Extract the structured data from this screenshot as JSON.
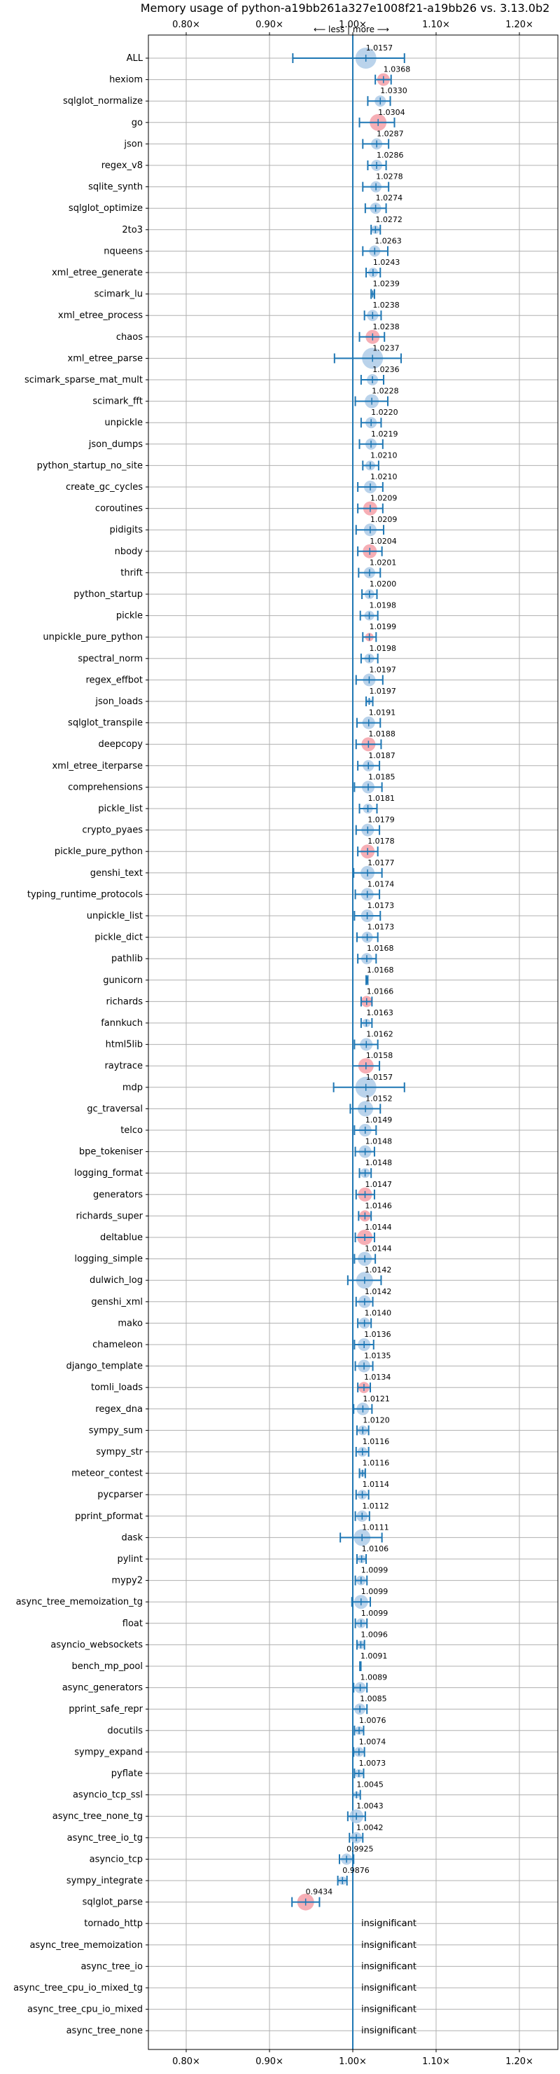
{
  "chart_data": {
    "type": "scatter",
    "title": "Memory usage of python-a19bb261a327e1008f21-a19bb26 vs. 3.13.0b2",
    "subtitle": "⟵ less | more ⟶",
    "xlim": [
      0.75,
      1.25
    ],
    "x_ticks": [
      "0.80×",
      "0.90×",
      "1.00×",
      "1.10×",
      "1.20×"
    ],
    "x_tick_values": [
      0.8,
      0.9,
      1.0,
      1.1,
      1.2
    ],
    "grid": true,
    "colors": {
      "significant": "#1f77b4",
      "changed": "#f4a0a8",
      "line": "#1f77b4"
    },
    "benchmarks": [
      {
        "name": "ALL",
        "value": 1.0157,
        "label": "1.0157",
        "err": [
          0.928,
          1.062
        ],
        "r": 15,
        "hl": false
      },
      {
        "name": "hexiom",
        "value": 1.0368,
        "label": "1.0368",
        "err": [
          1.027,
          1.046
        ],
        "r": 9,
        "hl": true
      },
      {
        "name": "sqlglot_normalize",
        "value": 1.033,
        "label": "1.0330",
        "err": [
          1.018,
          1.045
        ],
        "r": 8,
        "hl": false
      },
      {
        "name": "go",
        "value": 1.0304,
        "label": "1.0304",
        "err": [
          1.008,
          1.05
        ],
        "r": 12,
        "hl": true
      },
      {
        "name": "json",
        "value": 1.0287,
        "label": "1.0287",
        "err": [
          1.012,
          1.043
        ],
        "r": 8,
        "hl": false
      },
      {
        "name": "regex_v8",
        "value": 1.0286,
        "label": "1.0286",
        "err": [
          1.018,
          1.04
        ],
        "r": 8,
        "hl": false
      },
      {
        "name": "sqlite_synth",
        "value": 1.0278,
        "label": "1.0278",
        "err": [
          1.012,
          1.043
        ],
        "r": 8,
        "hl": false
      },
      {
        "name": "sqlglot_optimize",
        "value": 1.0274,
        "label": "1.0274",
        "err": [
          1.015,
          1.04
        ],
        "r": 8,
        "hl": false
      },
      {
        "name": "2to3",
        "value": 1.0272,
        "label": "1.0272",
        "err": [
          1.022,
          1.033
        ],
        "r": 6,
        "hl": false
      },
      {
        "name": "nqueens",
        "value": 1.0263,
        "label": "1.0263",
        "err": [
          1.012,
          1.042
        ],
        "r": 8,
        "hl": false
      },
      {
        "name": "xml_etree_generate",
        "value": 1.0243,
        "label": "1.0243",
        "err": [
          1.016,
          1.033
        ],
        "r": 7,
        "hl": false
      },
      {
        "name": "scimark_lu",
        "value": 1.0239,
        "label": "1.0239",
        "err": [
          1.022,
          1.026
        ],
        "r": 3,
        "hl": false
      },
      {
        "name": "xml_etree_process",
        "value": 1.0238,
        "label": "1.0238",
        "err": [
          1.014,
          1.034
        ],
        "r": 8,
        "hl": false
      },
      {
        "name": "chaos",
        "value": 1.0238,
        "label": "1.0238",
        "err": [
          1.008,
          1.038
        ],
        "r": 10,
        "hl": true
      },
      {
        "name": "xml_etree_parse",
        "value": 1.0237,
        "label": "1.0237",
        "err": [
          0.978,
          1.058
        ],
        "r": 15,
        "hl": false
      },
      {
        "name": "scimark_sparse_mat_mult",
        "value": 1.0236,
        "label": "1.0236",
        "err": [
          1.01,
          1.037
        ],
        "r": 8,
        "hl": false
      },
      {
        "name": "scimark_fft",
        "value": 1.0228,
        "label": "1.0228",
        "err": [
          1.003,
          1.042
        ],
        "r": 10,
        "hl": false
      },
      {
        "name": "unpickle",
        "value": 1.022,
        "label": "1.0220",
        "err": [
          1.01,
          1.034
        ],
        "r": 8,
        "hl": false
      },
      {
        "name": "json_dumps",
        "value": 1.0219,
        "label": "1.0219",
        "err": [
          1.008,
          1.036
        ],
        "r": 8,
        "hl": false
      },
      {
        "name": "python_startup_no_site",
        "value": 1.021,
        "label": "1.0210",
        "err": [
          1.012,
          1.031
        ],
        "r": 7,
        "hl": false
      },
      {
        "name": "create_gc_cycles",
        "value": 1.021,
        "label": "1.0210",
        "err": [
          1.006,
          1.036
        ],
        "r": 9,
        "hl": false
      },
      {
        "name": "coroutines",
        "value": 1.0209,
        "label": "1.0209",
        "err": [
          1.006,
          1.036
        ],
        "r": 10,
        "hl": true
      },
      {
        "name": "pidigits",
        "value": 1.0209,
        "label": "1.0209",
        "err": [
          1.004,
          1.037
        ],
        "r": 9,
        "hl": false
      },
      {
        "name": "nbody",
        "value": 1.0204,
        "label": "1.0204",
        "err": [
          1.006,
          1.035
        ],
        "r": 10,
        "hl": true
      },
      {
        "name": "thrift",
        "value": 1.0201,
        "label": "1.0201",
        "err": [
          1.007,
          1.033
        ],
        "r": 8,
        "hl": false
      },
      {
        "name": "python_startup",
        "value": 1.02,
        "label": "1.0200",
        "err": [
          1.011,
          1.029
        ],
        "r": 7,
        "hl": false
      },
      {
        "name": "pickle",
        "value": 1.0198,
        "label": "1.0198",
        "err": [
          1.009,
          1.03
        ],
        "r": 7,
        "hl": false
      },
      {
        "name": "unpickle_pure_python",
        "value": 1.0199,
        "label": "1.0199",
        "err": [
          1.012,
          1.028
        ],
        "r": 6,
        "hl": true
      },
      {
        "name": "spectral_norm",
        "value": 1.0198,
        "label": "1.0198",
        "err": [
          1.01,
          1.03
        ],
        "r": 7,
        "hl": false
      },
      {
        "name": "regex_effbot",
        "value": 1.0197,
        "label": "1.0197",
        "err": [
          1.004,
          1.036
        ],
        "r": 9,
        "hl": false
      },
      {
        "name": "json_loads",
        "value": 1.0197,
        "label": "1.0197",
        "err": [
          1.016,
          1.024
        ],
        "r": 4,
        "hl": false
      },
      {
        "name": "sqlglot_transpile",
        "value": 1.0191,
        "label": "1.0191",
        "err": [
          1.005,
          1.033
        ],
        "r": 9,
        "hl": false
      },
      {
        "name": "deepcopy",
        "value": 1.0188,
        "label": "1.0188",
        "err": [
          1.004,
          1.034
        ],
        "r": 10,
        "hl": true
      },
      {
        "name": "xml_etree_iterparse",
        "value": 1.0187,
        "label": "1.0187",
        "err": [
          1.006,
          1.032
        ],
        "r": 8,
        "hl": false
      },
      {
        "name": "comprehensions",
        "value": 1.0185,
        "label": "1.0185",
        "err": [
          1.002,
          1.035
        ],
        "r": 9,
        "hl": false
      },
      {
        "name": "pickle_list",
        "value": 1.0181,
        "label": "1.0181",
        "err": [
          1.008,
          1.029
        ],
        "r": 7,
        "hl": false
      },
      {
        "name": "crypto_pyaes",
        "value": 1.0179,
        "label": "1.0179",
        "err": [
          1.004,
          1.032
        ],
        "r": 9,
        "hl": false
      },
      {
        "name": "pickle_pure_python",
        "value": 1.0178,
        "label": "1.0178",
        "err": [
          1.006,
          1.03
        ],
        "r": 10,
        "hl": true
      },
      {
        "name": "genshi_text",
        "value": 1.0177,
        "label": "1.0177",
        "err": [
          1.001,
          1.035
        ],
        "r": 10,
        "hl": false
      },
      {
        "name": "typing_runtime_protocols",
        "value": 1.0174,
        "label": "1.0174",
        "err": [
          1.003,
          1.032
        ],
        "r": 9,
        "hl": false
      },
      {
        "name": "unpickle_list",
        "value": 1.0173,
        "label": "1.0173",
        "err": [
          1.002,
          1.033
        ],
        "r": 9,
        "hl": false
      },
      {
        "name": "pickle_dict",
        "value": 1.0173,
        "label": "1.0173",
        "err": [
          1.005,
          1.03
        ],
        "r": 8,
        "hl": false
      },
      {
        "name": "pathlib",
        "value": 1.0168,
        "label": "1.0168",
        "err": [
          1.006,
          1.028
        ],
        "r": 8,
        "hl": false
      },
      {
        "name": "gunicorn",
        "value": 1.0168,
        "label": "1.0168",
        "err": [
          1.016,
          1.018
        ],
        "r": 2,
        "hl": false
      },
      {
        "name": "richards",
        "value": 1.0166,
        "label": "1.0166",
        "err": [
          1.01,
          1.023
        ],
        "r": 8,
        "hl": true
      },
      {
        "name": "fannkuch",
        "value": 1.0163,
        "label": "1.0163",
        "err": [
          1.01,
          1.023
        ],
        "r": 6,
        "hl": false
      },
      {
        "name": "html5lib",
        "value": 1.0162,
        "label": "1.0162",
        "err": [
          1.002,
          1.03
        ],
        "r": 9,
        "hl": false
      },
      {
        "name": "raytrace",
        "value": 1.0158,
        "label": "1.0158",
        "err": [
          1.0,
          1.032
        ],
        "r": 11,
        "hl": true
      },
      {
        "name": "mdp",
        "value": 1.0157,
        "label": "1.0157",
        "err": [
          0.977,
          1.062
        ],
        "r": 15,
        "hl": false
      },
      {
        "name": "gc_traversal",
        "value": 1.0152,
        "label": "1.0152",
        "err": [
          0.997,
          1.033
        ],
        "r": 11,
        "hl": false
      },
      {
        "name": "telco",
        "value": 1.0149,
        "label": "1.0149",
        "err": [
          1.002,
          1.028
        ],
        "r": 9,
        "hl": false
      },
      {
        "name": "bpe_tokeniser",
        "value": 1.0148,
        "label": "1.0148",
        "err": [
          1.003,
          1.026
        ],
        "r": 9,
        "hl": false
      },
      {
        "name": "logging_format",
        "value": 1.0148,
        "label": "1.0148",
        "err": [
          1.008,
          1.022
        ],
        "r": 7,
        "hl": false
      },
      {
        "name": "generators",
        "value": 1.0147,
        "label": "1.0147",
        "err": [
          1.004,
          1.026
        ],
        "r": 10,
        "hl": true
      },
      {
        "name": "richards_super",
        "value": 1.0146,
        "label": "1.0146",
        "err": [
          1.007,
          1.022
        ],
        "r": 8,
        "hl": true
      },
      {
        "name": "deltablue",
        "value": 1.0144,
        "label": "1.0144",
        "err": [
          1.003,
          1.026
        ],
        "r": 11,
        "hl": true
      },
      {
        "name": "logging_simple",
        "value": 1.0144,
        "label": "1.0144",
        "err": [
          1.002,
          1.027
        ],
        "r": 10,
        "hl": false
      },
      {
        "name": "dulwich_log",
        "value": 1.0142,
        "label": "1.0142",
        "err": [
          0.994,
          1.034
        ],
        "r": 12,
        "hl": false
      },
      {
        "name": "genshi_xml",
        "value": 1.0142,
        "label": "1.0142",
        "err": [
          1.004,
          1.024
        ],
        "r": 9,
        "hl": false
      },
      {
        "name": "mako",
        "value": 1.014,
        "label": "1.0140",
        "err": [
          1.006,
          1.022
        ],
        "r": 8,
        "hl": false
      },
      {
        "name": "chameleon",
        "value": 1.0136,
        "label": "1.0136",
        "err": [
          1.002,
          1.025
        ],
        "r": 9,
        "hl": false
      },
      {
        "name": "django_template",
        "value": 1.0135,
        "label": "1.0135",
        "err": [
          1.003,
          1.024
        ],
        "r": 9,
        "hl": false
      },
      {
        "name": "tomli_loads",
        "value": 1.0134,
        "label": "1.0134",
        "err": [
          1.006,
          1.021
        ],
        "r": 8,
        "hl": true
      },
      {
        "name": "regex_dna",
        "value": 1.0121,
        "label": "1.0121",
        "err": [
          1.001,
          1.023
        ],
        "r": 9,
        "hl": false
      },
      {
        "name": "sympy_sum",
        "value": 1.012,
        "label": "1.0120",
        "err": [
          1.005,
          1.019
        ],
        "r": 7,
        "hl": false
      },
      {
        "name": "sympy_str",
        "value": 1.0116,
        "label": "1.0116",
        "err": [
          1.004,
          1.019
        ],
        "r": 7,
        "hl": false
      },
      {
        "name": "meteor_contest",
        "value": 1.0116,
        "label": "1.0116",
        "err": [
          1.008,
          1.015
        ],
        "r": 5,
        "hl": false
      },
      {
        "name": "pycparser",
        "value": 1.0114,
        "label": "1.0114",
        "err": [
          1.004,
          1.019
        ],
        "r": 7,
        "hl": false
      },
      {
        "name": "pprint_pformat",
        "value": 1.0112,
        "label": "1.0112",
        "err": [
          1.003,
          1.02
        ],
        "r": 8,
        "hl": false
      },
      {
        "name": "dask",
        "value": 1.0111,
        "label": "1.0111",
        "err": [
          0.985,
          1.035
        ],
        "r": 12,
        "hl": false
      },
      {
        "name": "pylint",
        "value": 1.0106,
        "label": "1.0106",
        "err": [
          1.005,
          1.016
        ],
        "r": 6,
        "hl": false
      },
      {
        "name": "mypy2",
        "value": 1.0099,
        "label": "1.0099",
        "err": [
          1.003,
          1.017
        ],
        "r": 7,
        "hl": false
      },
      {
        "name": "async_tree_memoization_tg",
        "value": 1.0099,
        "label": "1.0099",
        "err": [
          0.999,
          1.021
        ],
        "r": 10,
        "hl": false
      },
      {
        "name": "float",
        "value": 1.0099,
        "label": "1.0099",
        "err": [
          1.003,
          1.017
        ],
        "r": 7,
        "hl": false
      },
      {
        "name": "asyncio_websockets",
        "value": 1.0096,
        "label": "1.0096",
        "err": [
          1.005,
          1.014
        ],
        "r": 6,
        "hl": false
      },
      {
        "name": "bench_mp_pool",
        "value": 1.0091,
        "label": "1.0091",
        "err": [
          1.0085,
          1.0097
        ],
        "r": 2,
        "hl": false
      },
      {
        "name": "async_generators",
        "value": 1.0089,
        "label": "1.0089",
        "err": [
          1.001,
          1.017
        ],
        "r": 8,
        "hl": false
      },
      {
        "name": "pprint_safe_repr",
        "value": 1.0085,
        "label": "1.0085",
        "err": [
          1.0,
          1.017
        ],
        "r": 8,
        "hl": false
      },
      {
        "name": "docutils",
        "value": 1.0076,
        "label": "1.0076",
        "err": [
          1.002,
          1.013
        ],
        "r": 6,
        "hl": false
      },
      {
        "name": "sympy_expand",
        "value": 1.0074,
        "label": "1.0074",
        "err": [
          1.001,
          1.014
        ],
        "r": 7,
        "hl": false
      },
      {
        "name": "pyflate",
        "value": 1.0073,
        "label": "1.0073",
        "err": [
          1.002,
          1.013
        ],
        "r": 6,
        "hl": false
      },
      {
        "name": "asyncio_tcp_ssl",
        "value": 1.0045,
        "label": "1.0045",
        "err": [
          1.0,
          1.009
        ],
        "r": 5,
        "hl": false
      },
      {
        "name": "async_tree_none_tg",
        "value": 1.0043,
        "label": "1.0043",
        "err": [
          0.994,
          1.015
        ],
        "r": 10,
        "hl": false
      },
      {
        "name": "async_tree_io_tg",
        "value": 1.0042,
        "label": "1.0042",
        "err": [
          0.996,
          1.012
        ],
        "r": 8,
        "hl": false
      },
      {
        "name": "asyncio_tcp",
        "value": 0.9925,
        "label": "0.9925",
        "err": [
          0.984,
          1.001
        ],
        "r": 8,
        "hl": false
      },
      {
        "name": "sympy_integrate",
        "value": 0.9876,
        "label": "0.9876",
        "err": [
          0.982,
          0.993
        ],
        "r": 6,
        "hl": false
      },
      {
        "name": "sqlglot_parse",
        "value": 0.9434,
        "label": "0.9434",
        "err": [
          0.927,
          0.96
        ],
        "r": 12,
        "hl": true
      },
      {
        "name": "tornado_http",
        "value": null,
        "label": "insignificant",
        "err": null,
        "r": 0,
        "hl": false
      },
      {
        "name": "async_tree_memoization",
        "value": null,
        "label": "insignificant",
        "err": null,
        "r": 0,
        "hl": false
      },
      {
        "name": "async_tree_io",
        "value": null,
        "label": "insignificant",
        "err": null,
        "r": 0,
        "hl": false
      },
      {
        "name": "async_tree_cpu_io_mixed_tg",
        "value": null,
        "label": "insignificant",
        "err": null,
        "r": 0,
        "hl": false
      },
      {
        "name": "async_tree_cpu_io_mixed",
        "value": null,
        "label": "insignificant",
        "err": null,
        "r": 0,
        "hl": false
      },
      {
        "name": "async_tree_none",
        "value": null,
        "label": "insignificant",
        "err": null,
        "r": 0,
        "hl": false
      }
    ]
  }
}
